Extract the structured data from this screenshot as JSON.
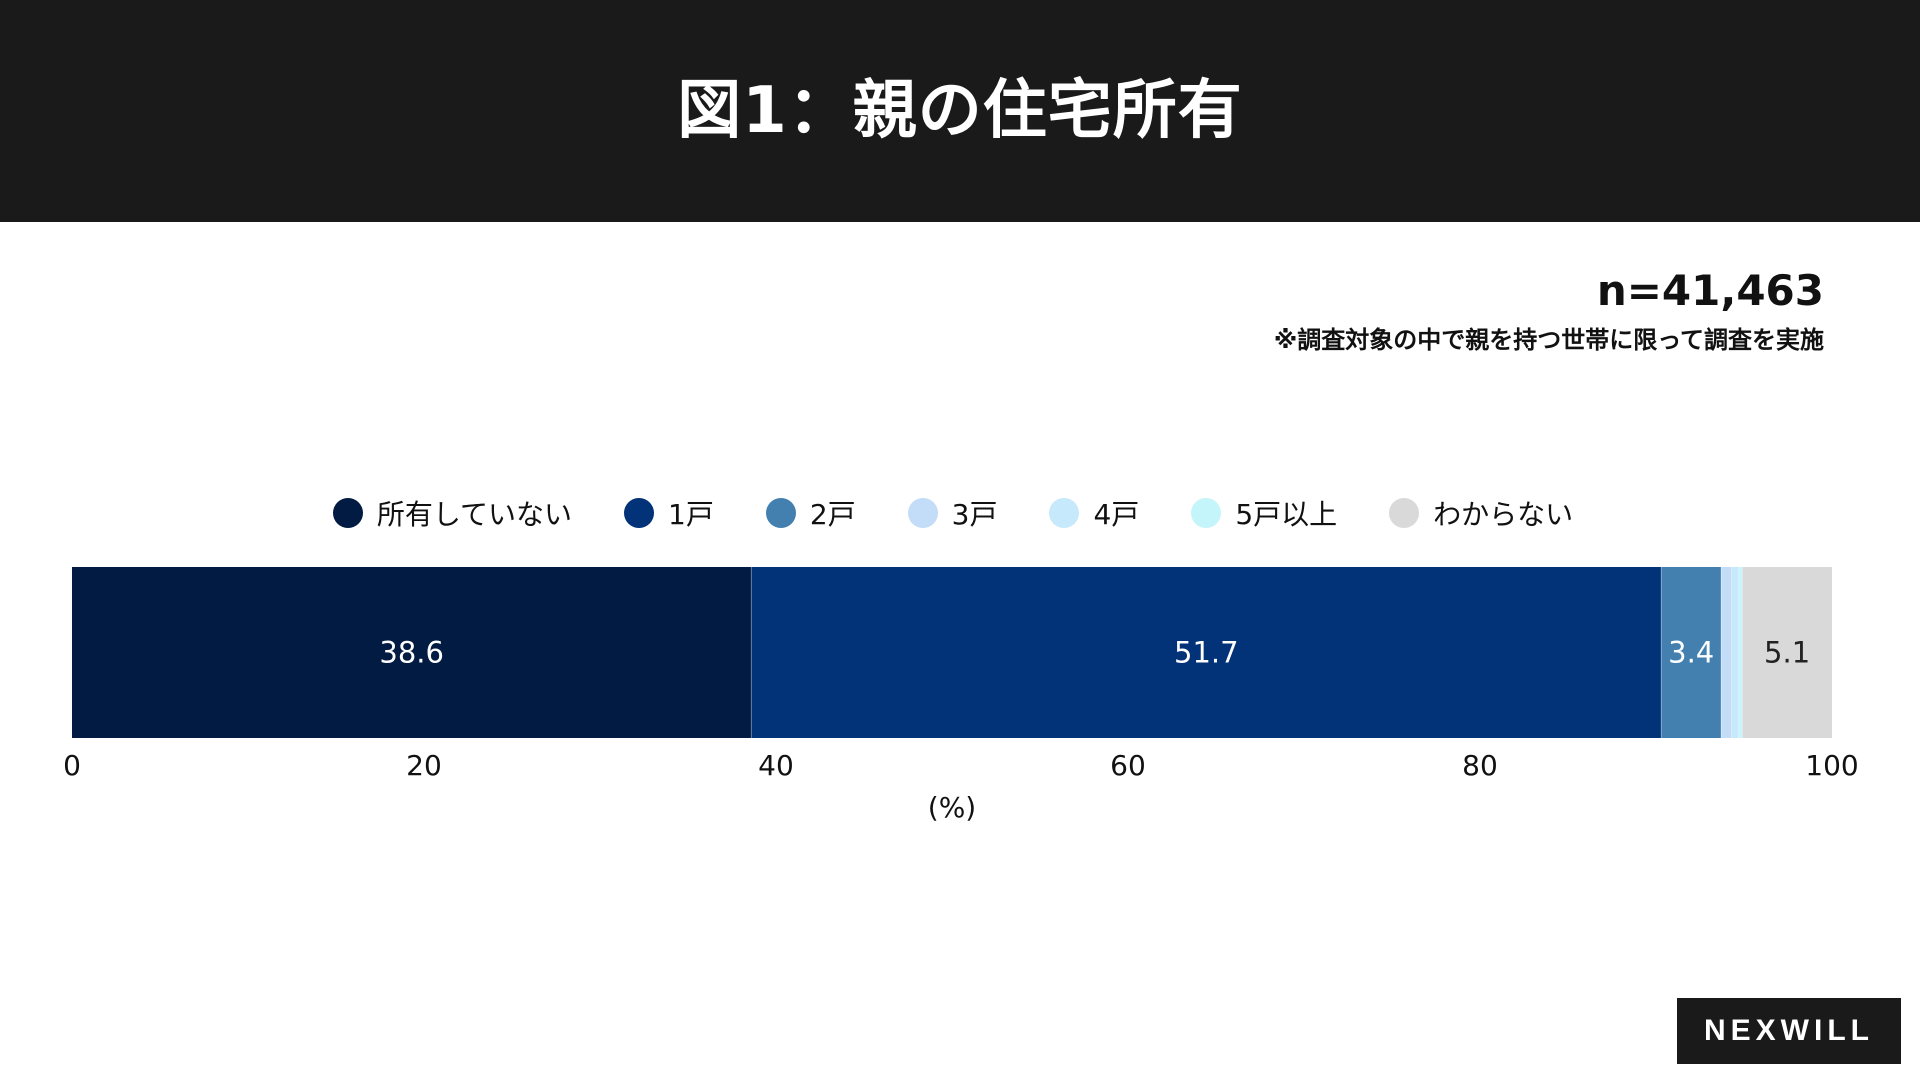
{
  "header": {
    "title": "図1：親の住宅所有"
  },
  "sample": {
    "n": "n=41,463",
    "note": "※調査対象の中で親を持つ世帯に限って調査を実施"
  },
  "logo": {
    "text": "NEXWILL"
  },
  "chart_data": {
    "type": "bar",
    "orientation": "horizontal-stacked",
    "series": [
      {
        "name": "所有していない",
        "value": 38.6,
        "label": "38.6",
        "color": "#021b43"
      },
      {
        "name": "1戸",
        "value": 51.7,
        "label": "51.7",
        "color": "#023278"
      },
      {
        "name": "2戸",
        "value": 3.4,
        "label": "3.4",
        "color": "#4380b0"
      },
      {
        "name": "3戸",
        "value": 0.6,
        "label": "",
        "color": "#c3dcf7"
      },
      {
        "name": "4戸",
        "value": 0.4,
        "label": "",
        "color": "#c6e9fb"
      },
      {
        "name": "5戸以上",
        "value": 0.2,
        "label": "",
        "color": "#c3f5fb"
      },
      {
        "name": "わからない",
        "value": 5.1,
        "label": "5.1",
        "color": "#d9d9d9"
      }
    ],
    "xlim": [
      0,
      100
    ],
    "xticks": [
      "0",
      "20",
      "40",
      "60",
      "80",
      "100"
    ],
    "xlabel": "(%)",
    "legend_position": "top"
  }
}
